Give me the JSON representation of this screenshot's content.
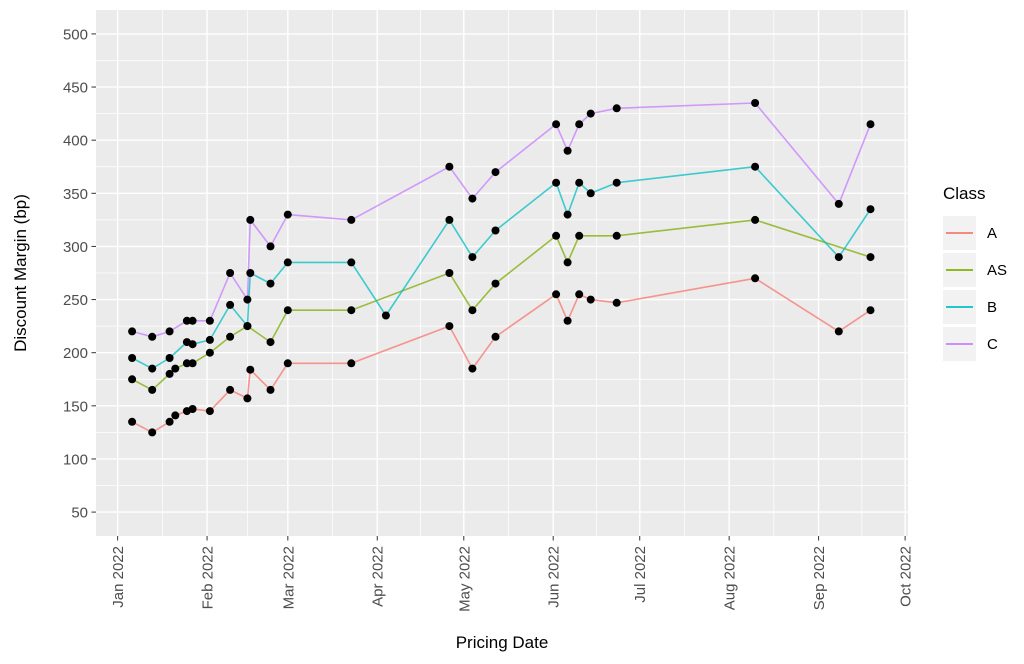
{
  "figure": {
    "x_axis_title": "Pricing Date",
    "y_axis_title": "Discount Margin (bp)",
    "legend": {
      "title": "Class",
      "entries": [
        {
          "label": "A",
          "color": "#F8766D"
        },
        {
          "label": "AS",
          "color": "#7CAE00"
        },
        {
          "label": "B",
          "color": "#00BFC4"
        },
        {
          "label": "C",
          "color": "#C77CFF"
        }
      ]
    }
  },
  "chart_data": {
    "type": "line",
    "title": "",
    "xlabel": "Pricing Date",
    "ylabel": "Discount Margin (bp)",
    "legend_title": "Class",
    "legend_position": "right",
    "panel_bg": "#EBEBEB",
    "grid_color": "#FFFFFF",
    "point_color": "#000000",
    "tick_text_color": "#4D4D4D",
    "x_tick_labels": [
      "Jan 2022",
      "Feb 2022",
      "Mar 2022",
      "Apr 2022",
      "May 2022",
      "Jun 2022",
      "Jul 2022",
      "Aug 2022",
      "Sep 2022",
      "Oct 2022"
    ],
    "x_tick_days": [
      0,
      31,
      59,
      90,
      120,
      151,
      181,
      212,
      243,
      273
    ],
    "x_minor_days": [
      15.5,
      45,
      74.5,
      105,
      135.5,
      166,
      196.5,
      227.5,
      258
    ],
    "y_ticks": [
      50,
      100,
      150,
      200,
      250,
      300,
      350,
      400,
      450,
      500
    ],
    "y_minor": [
      75,
      125,
      175,
      225,
      275,
      325,
      375,
      425,
      475
    ],
    "x_domain_days": [
      -7.5,
      274
    ],
    "y_domain": [
      27.5,
      522.5
    ],
    "point_format": "[day_of_year_2022, discount_margin_bp, pricing_date]",
    "series": [
      {
        "name": "A",
        "color": "#F8766D",
        "points": [
          [
            5,
            135,
            "Jan 6"
          ],
          [
            12,
            125,
            "Jan 13"
          ],
          [
            18,
            135,
            "Jan 19"
          ],
          [
            20,
            141,
            "Jan 21"
          ],
          [
            24,
            145,
            "Jan 25"
          ],
          [
            26,
            147,
            "Jan 27"
          ],
          [
            32,
            145,
            "Feb 2"
          ],
          [
            39,
            165,
            "Feb 9"
          ],
          [
            45,
            157,
            "Feb 15"
          ],
          [
            46,
            184,
            "Feb 16"
          ],
          [
            53,
            165,
            "Feb 23"
          ],
          [
            59,
            190,
            "Mar 1"
          ],
          [
            81,
            190,
            "Mar 23"
          ],
          [
            115,
            225,
            "Apr 26"
          ],
          [
            123,
            185,
            "May 4"
          ],
          [
            131,
            215,
            "May 12"
          ],
          [
            152,
            255,
            "Jun 2"
          ],
          [
            156,
            230,
            "Jun 6"
          ],
          [
            160,
            255,
            "Jun 10"
          ],
          [
            164,
            250,
            "Jun 14"
          ],
          [
            173,
            247,
            "Jun 23"
          ],
          [
            221,
            270,
            "Aug 10"
          ],
          [
            250,
            220,
            "Sep 8"
          ],
          [
            261,
            240,
            "Sep 19"
          ]
        ]
      },
      {
        "name": "AS",
        "color": "#7CAE00",
        "points": [
          [
            5,
            175,
            "Jan 6"
          ],
          [
            12,
            165,
            "Jan 13"
          ],
          [
            18,
            180,
            "Jan 19"
          ],
          [
            20,
            185,
            "Jan 21"
          ],
          [
            24,
            190,
            "Jan 25"
          ],
          [
            26,
            190,
            "Jan 27"
          ],
          [
            32,
            200,
            "Feb 2"
          ],
          [
            39,
            215,
            "Feb 9"
          ],
          [
            45,
            225,
            "Feb 15"
          ],
          [
            53,
            210,
            "Feb 23"
          ],
          [
            59,
            240,
            "Mar 1"
          ],
          [
            81,
            240,
            "Mar 23"
          ],
          [
            115,
            275,
            "Apr 26"
          ],
          [
            123,
            240,
            "May 4"
          ],
          [
            131,
            265,
            "May 12"
          ],
          [
            152,
            310,
            "Jun 2"
          ],
          [
            156,
            285,
            "Jun 6"
          ],
          [
            160,
            310,
            "Jun 10"
          ],
          [
            173,
            310,
            "Jun 23"
          ],
          [
            221,
            325,
            "Aug 10"
          ],
          [
            261,
            290,
            "Sep 19"
          ]
        ]
      },
      {
        "name": "B",
        "color": "#00BFC4",
        "points": [
          [
            5,
            195,
            "Jan 6"
          ],
          [
            12,
            185,
            "Jan 13"
          ],
          [
            18,
            195,
            "Jan 19"
          ],
          [
            24,
            210,
            "Jan 25"
          ],
          [
            26,
            208,
            "Jan 27"
          ],
          [
            32,
            212,
            "Feb 2"
          ],
          [
            39,
            245,
            "Feb 9"
          ],
          [
            45,
            225,
            "Feb 15"
          ],
          [
            46,
            275,
            "Feb 16"
          ],
          [
            53,
            265,
            "Feb 23"
          ],
          [
            59,
            285,
            "Mar 1"
          ],
          [
            81,
            285,
            "Mar 23"
          ],
          [
            93,
            235,
            "Apr 4"
          ],
          [
            115,
            325,
            "Apr 26"
          ],
          [
            123,
            290,
            "May 4"
          ],
          [
            131,
            315,
            "May 12"
          ],
          [
            152,
            360,
            "Jun 2"
          ],
          [
            156,
            330,
            "Jun 6"
          ],
          [
            160,
            360,
            "Jun 10"
          ],
          [
            164,
            350,
            "Jun 14"
          ],
          [
            173,
            360,
            "Jun 23"
          ],
          [
            221,
            375,
            "Aug 10"
          ],
          [
            250,
            290,
            "Sep 8"
          ],
          [
            261,
            335,
            "Sep 19"
          ]
        ]
      },
      {
        "name": "C",
        "color": "#C77CFF",
        "points": [
          [
            5,
            220,
            "Jan 6"
          ],
          [
            12,
            215,
            "Jan 13"
          ],
          [
            18,
            220,
            "Jan 19"
          ],
          [
            24,
            230,
            "Jan 25"
          ],
          [
            26,
            230,
            "Jan 27"
          ],
          [
            32,
            230,
            "Feb 2"
          ],
          [
            39,
            275,
            "Feb 9"
          ],
          [
            45,
            250,
            "Feb 15"
          ],
          [
            46,
            325,
            "Feb 16"
          ],
          [
            53,
            300,
            "Feb 23"
          ],
          [
            59,
            330,
            "Mar 1"
          ],
          [
            81,
            325,
            "Mar 23"
          ],
          [
            115,
            375,
            "Apr 26"
          ],
          [
            123,
            345,
            "May 4"
          ],
          [
            131,
            370,
            "May 12"
          ],
          [
            152,
            415,
            "Jun 2"
          ],
          [
            156,
            390,
            "Jun 6"
          ],
          [
            160,
            415,
            "Jun 10"
          ],
          [
            164,
            425,
            "Jun 14"
          ],
          [
            173,
            430,
            "Jun 23"
          ],
          [
            221,
            435,
            "Aug 10"
          ],
          [
            250,
            340,
            "Sep 8"
          ],
          [
            261,
            415,
            "Sep 19"
          ]
        ]
      }
    ]
  }
}
